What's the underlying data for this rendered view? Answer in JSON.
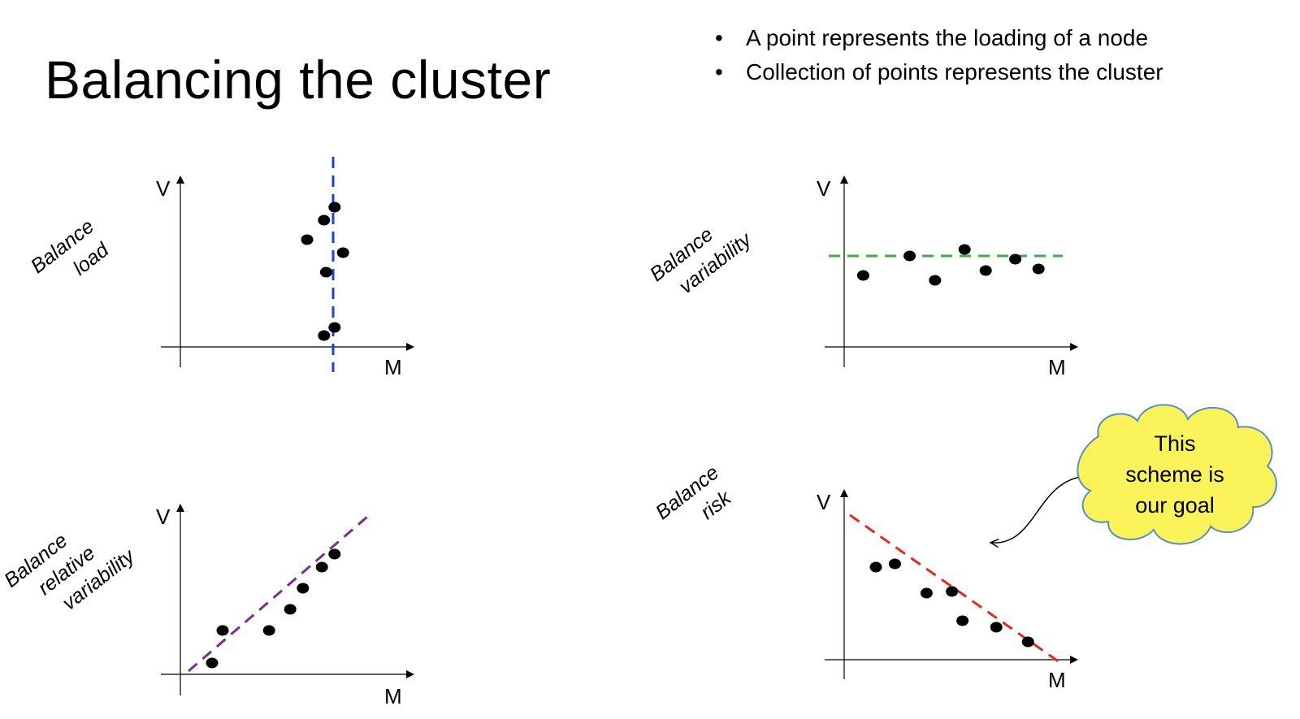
{
  "slide": {
    "title": "Balancing the cluster",
    "bullets": [
      "A point represents the loading of a node",
      "Collection of points represents the cluster"
    ],
    "bullet_glyph": "•"
  },
  "panels": [
    {
      "id": "balance-load",
      "label_lines": [
        "Balance",
        "load"
      ],
      "y_axis_label": "V",
      "x_axis_label": "M",
      "line_style": "vertical",
      "line_color": "#1f3fd6",
      "points": [
        [
          7.3,
          8.6
        ],
        [
          6.8,
          7.8
        ],
        [
          6.0,
          6.6
        ],
        [
          7.7,
          5.8
        ],
        [
          6.9,
          4.6
        ],
        [
          7.3,
          1.2
        ],
        [
          6.8,
          0.7
        ]
      ]
    },
    {
      "id": "balance-variability",
      "label_lines": [
        "Balance",
        "variability"
      ],
      "y_axis_label": "V",
      "x_axis_label": "M",
      "line_style": "horizontal",
      "line_color": "#3fae49",
      "points": [
        [
          0.9,
          4.4
        ],
        [
          3.1,
          5.6
        ],
        [
          4.3,
          4.1
        ],
        [
          5.7,
          6.0
        ],
        [
          6.7,
          4.7
        ],
        [
          8.1,
          5.4
        ],
        [
          9.2,
          4.8
        ]
      ]
    },
    {
      "id": "balance-relative-variability",
      "label_lines": [
        "Balance",
        "relative",
        "variability"
      ],
      "y_axis_label": "V",
      "x_axis_label": "M",
      "line_style": "diagonal-up",
      "line_color": "#7b2d8e",
      "points": [
        [
          1.5,
          0.7
        ],
        [
          2.0,
          2.7
        ],
        [
          4.2,
          2.7
        ],
        [
          5.2,
          4.0
        ],
        [
          5.8,
          5.3
        ],
        [
          6.7,
          6.6
        ],
        [
          7.3,
          7.4
        ]
      ]
    },
    {
      "id": "balance-risk",
      "label_lines": [
        "Balance",
        "risk"
      ],
      "y_axis_label": "V",
      "x_axis_label": "M",
      "line_style": "diagonal-down",
      "line_color": "#e02a25",
      "points": [
        [
          1.5,
          5.7
        ],
        [
          2.4,
          5.9
        ],
        [
          3.9,
          4.1
        ],
        [
          5.1,
          4.2
        ],
        [
          5.6,
          2.4
        ],
        [
          7.2,
          2.0
        ],
        [
          8.7,
          1.1
        ]
      ]
    }
  ],
  "callout": {
    "lines": [
      "This",
      "scheme is",
      "our goal"
    ],
    "fill_color": "#faf35a",
    "stroke_color": "#5b8fc0"
  }
}
